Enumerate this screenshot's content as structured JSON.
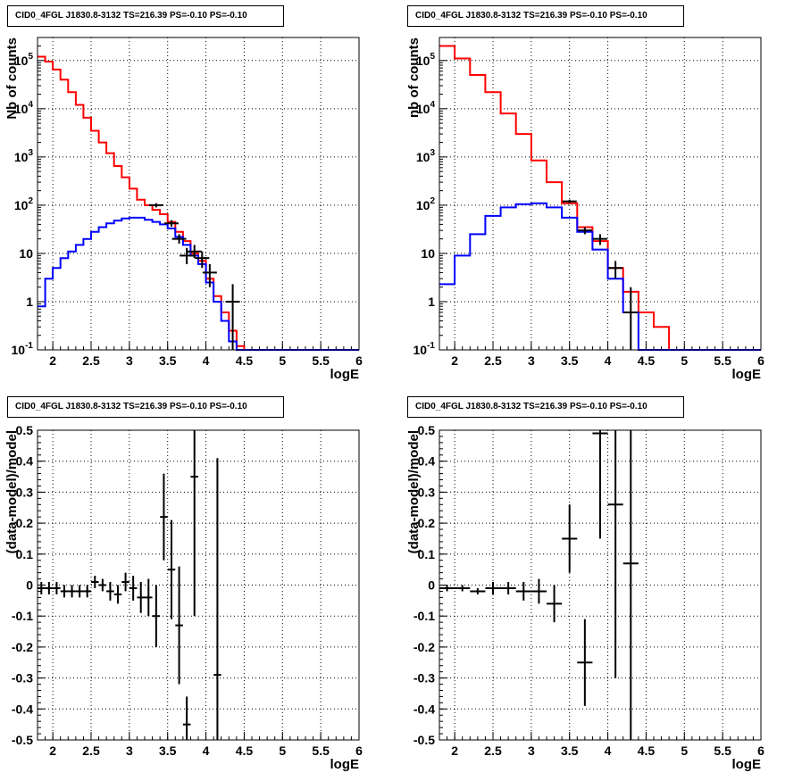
{
  "chart_data": [
    {
      "type": "line",
      "title": "CID0_4FGL J1830.8-3132 TS=216.39 PS=-0.10 PS=-0.10",
      "xlabel": "logE",
      "ylabel": "Nb of counts",
      "xlim": [
        1.8,
        6.0
      ],
      "ylim": [
        0.1,
        300000
      ],
      "yscale": "log",
      "grid": true,
      "x_ticks": [
        "2",
        "2.5",
        "3",
        "3.5",
        "4",
        "4.5",
        "5",
        "5.5",
        "6"
      ],
      "y_ticks": [
        "10^-1",
        "1",
        "10",
        "10^2",
        "10^3",
        "10^4",
        "10^5"
      ],
      "bin_edges": [
        1.8,
        1.9,
        2.0,
        2.1,
        2.2,
        2.3,
        2.4,
        2.5,
        2.6,
        2.7,
        2.8,
        2.9,
        3.0,
        3.1,
        3.2,
        3.3,
        3.4,
        3.5,
        3.6,
        3.7,
        3.8,
        3.9,
        4.0,
        4.1,
        4.2,
        4.3,
        4.4,
        4.5,
        4.6,
        4.7,
        4.8,
        4.9,
        5.0,
        5.1,
        5.2,
        5.3,
        5.4,
        5.5,
        5.6,
        5.7,
        5.8,
        5.9,
        6.0
      ],
      "series": [
        {
          "color": "#ff0000",
          "style": "step",
          "values": [
            120000,
            95000,
            65000,
            40000,
            22000,
            12000,
            6500,
            3500,
            2000,
            1200,
            650,
            380,
            220,
            130,
            100,
            80,
            65,
            45,
            28,
            18,
            10,
            7,
            3,
            1.3,
            0.6,
            0.25,
            0.12,
            0.1,
            0.1,
            0.1,
            0.1,
            0.1,
            0.1,
            0.1,
            0.1,
            0.1,
            0.1,
            0.1,
            0.1,
            0.1,
            0.1,
            0.1
          ]
        },
        {
          "color": "#0000ff",
          "style": "step",
          "values": [
            0.8,
            3,
            5,
            8,
            11,
            15,
            20,
            28,
            35,
            42,
            48,
            53,
            55,
            55,
            50,
            45,
            40,
            33,
            22,
            15,
            9,
            6,
            2.5,
            1,
            0.4,
            0.15,
            0.1,
            0.1,
            0.1,
            0.1,
            0.1,
            0.1,
            0.1,
            0.1,
            0.1,
            0.1,
            0.1,
            0.1,
            0.1,
            0.1,
            0.1,
            0.1
          ]
        }
      ],
      "data_points": [
        {
          "x": 3.35,
          "y": 100,
          "lo": 90,
          "hi": 110
        },
        {
          "x": 3.55,
          "y": 42,
          "lo": 36,
          "hi": 49
        },
        {
          "x": 3.65,
          "y": 20,
          "lo": 16,
          "hi": 25
        },
        {
          "x": 3.75,
          "y": 9,
          "lo": 6,
          "hi": 13
        },
        {
          "x": 3.85,
          "y": 11,
          "lo": 8,
          "hi": 15
        },
        {
          "x": 3.95,
          "y": 8,
          "lo": 5,
          "hi": 11
        },
        {
          "x": 4.05,
          "y": 4,
          "lo": 2,
          "hi": 6
        },
        {
          "x": 4.35,
          "y": 1,
          "lo": 0.1,
          "hi": 2.3
        }
      ]
    },
    {
      "type": "line",
      "title": "CID0_4FGL J1830.8-3132 TS=216.39 PS=-0.10 PS=-0.10",
      "xlabel": "logE",
      "ylabel": "nb of counts",
      "xlim": [
        1.8,
        6.0
      ],
      "ylim": [
        0.1,
        300000
      ],
      "yscale": "log",
      "grid": true,
      "x_ticks": [
        "2",
        "2.5",
        "3",
        "3.5",
        "4",
        "4.5",
        "5",
        "5.5",
        "6"
      ],
      "y_ticks": [
        "10^-1",
        "1",
        "10",
        "10^2",
        "10^3",
        "10^4",
        "10^5"
      ],
      "bin_edges": [
        1.8,
        2.0,
        2.2,
        2.4,
        2.6,
        2.8,
        3.0,
        3.2,
        3.4,
        3.6,
        3.8,
        4.0,
        4.2,
        4.4,
        4.6,
        4.8,
        5.0,
        5.2,
        5.4,
        5.6,
        5.8,
        6.0
      ],
      "series": [
        {
          "color": "#ff0000",
          "style": "step",
          "values": [
            200000,
            110000,
            50000,
            22000,
            8000,
            3000,
            850,
            300,
            110,
            35,
            18,
            5,
            1.6,
            0.6,
            0.3,
            0.1,
            0.1,
            0.1,
            0.1,
            0.1,
            0.1
          ]
        },
        {
          "color": "#0000ff",
          "style": "step",
          "values": [
            2.3,
            9,
            25,
            60,
            90,
            105,
            110,
            90,
            55,
            28,
            12,
            3,
            0.6,
            0.1,
            0.1,
            0.1,
            0.1,
            0.1,
            0.1,
            0.1,
            0.1
          ]
        }
      ],
      "data_points": [
        {
          "x": 3.5,
          "y": 120,
          "lo": 110,
          "hi": 130
        },
        {
          "x": 3.7,
          "y": 30,
          "lo": 25,
          "hi": 35
        },
        {
          "x": 3.9,
          "y": 20,
          "lo": 15,
          "hi": 25
        },
        {
          "x": 4.1,
          "y": 5,
          "lo": 3,
          "hi": 7
        },
        {
          "x": 4.3,
          "y": 0.6,
          "lo": 0.1,
          "hi": 2
        }
      ]
    },
    {
      "type": "scatter",
      "title": "CID0_4FGL J1830.8-3132 TS=216.39 PS=-0.10 PS=-0.10",
      "xlabel": "logE",
      "ylabel": "(data-model)/model",
      "xlim": [
        1.8,
        6.0
      ],
      "ylim": [
        -0.5,
        0.5
      ],
      "grid": true,
      "x_ticks": [
        "2",
        "2.5",
        "3",
        "3.5",
        "4",
        "4.5",
        "5",
        "5.5",
        "6"
      ],
      "y_ticks": [
        "-0.5",
        "-0.4",
        "-0.3",
        "-0.2",
        "-0.1",
        "0",
        "0.1",
        "0.2",
        "0.3",
        "0.4",
        "0.5"
      ],
      "points": [
        {
          "x": 1.85,
          "y": -0.01,
          "err": 0.02,
          "xerr": 0.05
        },
        {
          "x": 1.95,
          "y": -0.01,
          "err": 0.02,
          "xerr": 0.05
        },
        {
          "x": 2.05,
          "y": -0.01,
          "err": 0.02,
          "xerr": 0.05
        },
        {
          "x": 2.15,
          "y": -0.02,
          "err": 0.02,
          "xerr": 0.05
        },
        {
          "x": 2.25,
          "y": -0.02,
          "err": 0.02,
          "xerr": 0.05
        },
        {
          "x": 2.35,
          "y": -0.02,
          "err": 0.02,
          "xerr": 0.05
        },
        {
          "x": 2.45,
          "y": -0.02,
          "err": 0.02,
          "xerr": 0.05
        },
        {
          "x": 2.55,
          "y": 0.01,
          "err": 0.02,
          "xerr": 0.05
        },
        {
          "x": 2.65,
          "y": 0.0,
          "err": 0.02,
          "xerr": 0.05
        },
        {
          "x": 2.75,
          "y": -0.02,
          "err": 0.03,
          "xerr": 0.05
        },
        {
          "x": 2.85,
          "y": -0.03,
          "err": 0.03,
          "xerr": 0.05
        },
        {
          "x": 2.95,
          "y": 0.01,
          "err": 0.03,
          "xerr": 0.05
        },
        {
          "x": 3.05,
          "y": -0.01,
          "err": 0.04,
          "xerr": 0.05
        },
        {
          "x": 3.15,
          "y": -0.04,
          "err": 0.05,
          "xerr": 0.05
        },
        {
          "x": 3.25,
          "y": -0.04,
          "err": 0.06,
          "xerr": 0.05
        },
        {
          "x": 3.35,
          "y": -0.1,
          "err": 0.1,
          "xerr": 0.05
        },
        {
          "x": 3.45,
          "y": 0.22,
          "err": 0.14,
          "xerr": 0.05
        },
        {
          "x": 3.55,
          "y": 0.05,
          "err": 0.16,
          "xerr": 0.05
        },
        {
          "x": 3.65,
          "y": -0.13,
          "err": 0.19,
          "xerr": 0.05
        },
        {
          "x": 3.75,
          "y": -0.45,
          "err": 0.09,
          "xerr": 0.05
        },
        {
          "x": 3.85,
          "y": 0.35,
          "err": 0.45,
          "xerr": 0.05
        },
        {
          "x": 4.15,
          "y": -0.29,
          "err": 0.7,
          "xerr": 0.05
        }
      ]
    },
    {
      "type": "scatter",
      "title": "CID0_4FGL J1830.8-3132 TS=216.39 PS=-0.10 PS=-0.10",
      "xlabel": "logE",
      "ylabel": "(data-model)/model",
      "xlim": [
        1.8,
        6.0
      ],
      "ylim": [
        -0.5,
        0.5
      ],
      "grid": true,
      "x_ticks": [
        "2",
        "2.5",
        "3",
        "3.5",
        "4",
        "4.5",
        "5",
        "5.5",
        "6"
      ],
      "y_ticks": [
        "-0.5",
        "-0.4",
        "-0.3",
        "-0.2",
        "-0.1",
        "0",
        "0.1",
        "0.2",
        "0.3",
        "0.4",
        "0.5"
      ],
      "points": [
        {
          "x": 1.9,
          "y": -0.01,
          "err": 0.01,
          "xerr": 0.1
        },
        {
          "x": 2.1,
          "y": -0.01,
          "err": 0.01,
          "xerr": 0.1
        },
        {
          "x": 2.3,
          "y": -0.02,
          "err": 0.01,
          "xerr": 0.1
        },
        {
          "x": 2.5,
          "y": -0.01,
          "err": 0.02,
          "xerr": 0.1
        },
        {
          "x": 2.7,
          "y": -0.01,
          "err": 0.02,
          "xerr": 0.1
        },
        {
          "x": 2.9,
          "y": -0.02,
          "err": 0.03,
          "xerr": 0.1
        },
        {
          "x": 3.1,
          "y": -0.02,
          "err": 0.04,
          "xerr": 0.1
        },
        {
          "x": 3.3,
          "y": -0.06,
          "err": 0.06,
          "xerr": 0.1
        },
        {
          "x": 3.5,
          "y": 0.15,
          "err": 0.11,
          "xerr": 0.1
        },
        {
          "x": 3.7,
          "y": -0.25,
          "err": 0.14,
          "xerr": 0.1
        },
        {
          "x": 3.9,
          "y": 0.49,
          "err": 0.34,
          "xerr": 0.1
        },
        {
          "x": 4.1,
          "y": 0.26,
          "err": 0.56,
          "xerr": 0.1
        },
        {
          "x": 4.3,
          "y": 0.07,
          "err": 0.9,
          "xerr": 0.1
        }
      ]
    }
  ]
}
